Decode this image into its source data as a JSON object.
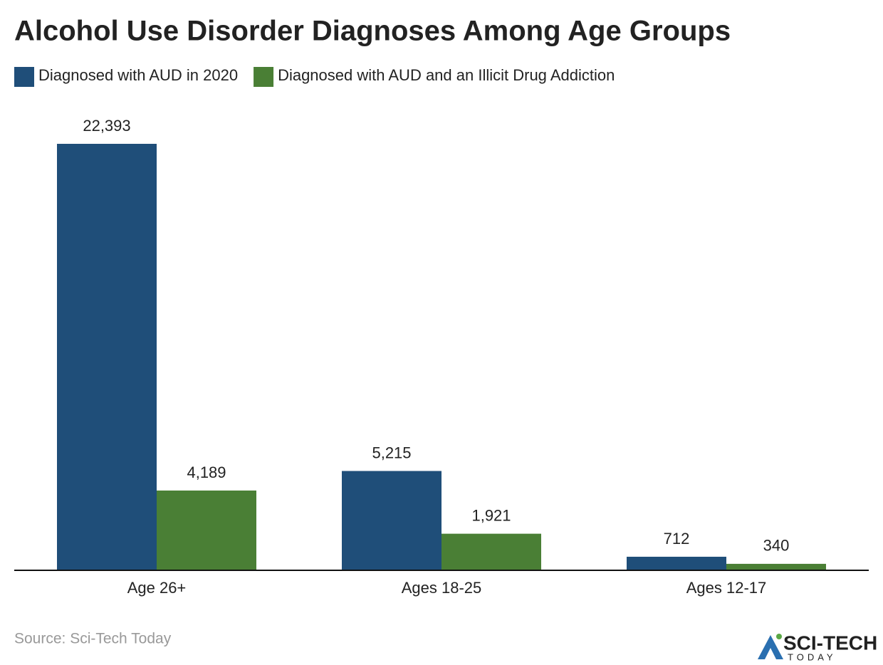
{
  "chart_data": {
    "type": "bar",
    "title": "Alcohol Use Disorder Diagnoses Among Age Groups",
    "categories": [
      "Age 26+",
      "Ages 18-25",
      "Ages 12-17"
    ],
    "series": [
      {
        "name": "Diagnosed with AUD in 2020",
        "color": "#1f4e79",
        "values": [
          22393,
          5215,
          712
        ],
        "value_labels": [
          "22,393",
          "5,215",
          "712"
        ]
      },
      {
        "name": "Diagnosed with AUD and an Illicit Drug Addiction",
        "color": "#4a7f35",
        "values": [
          4189,
          1921,
          340
        ],
        "value_labels": [
          "4,189",
          "1,921",
          "340"
        ]
      }
    ],
    "source": "Source: Sci-Tech Today"
  },
  "logo": {
    "name": "SCI-TECH",
    "tagline": "TODAY"
  }
}
